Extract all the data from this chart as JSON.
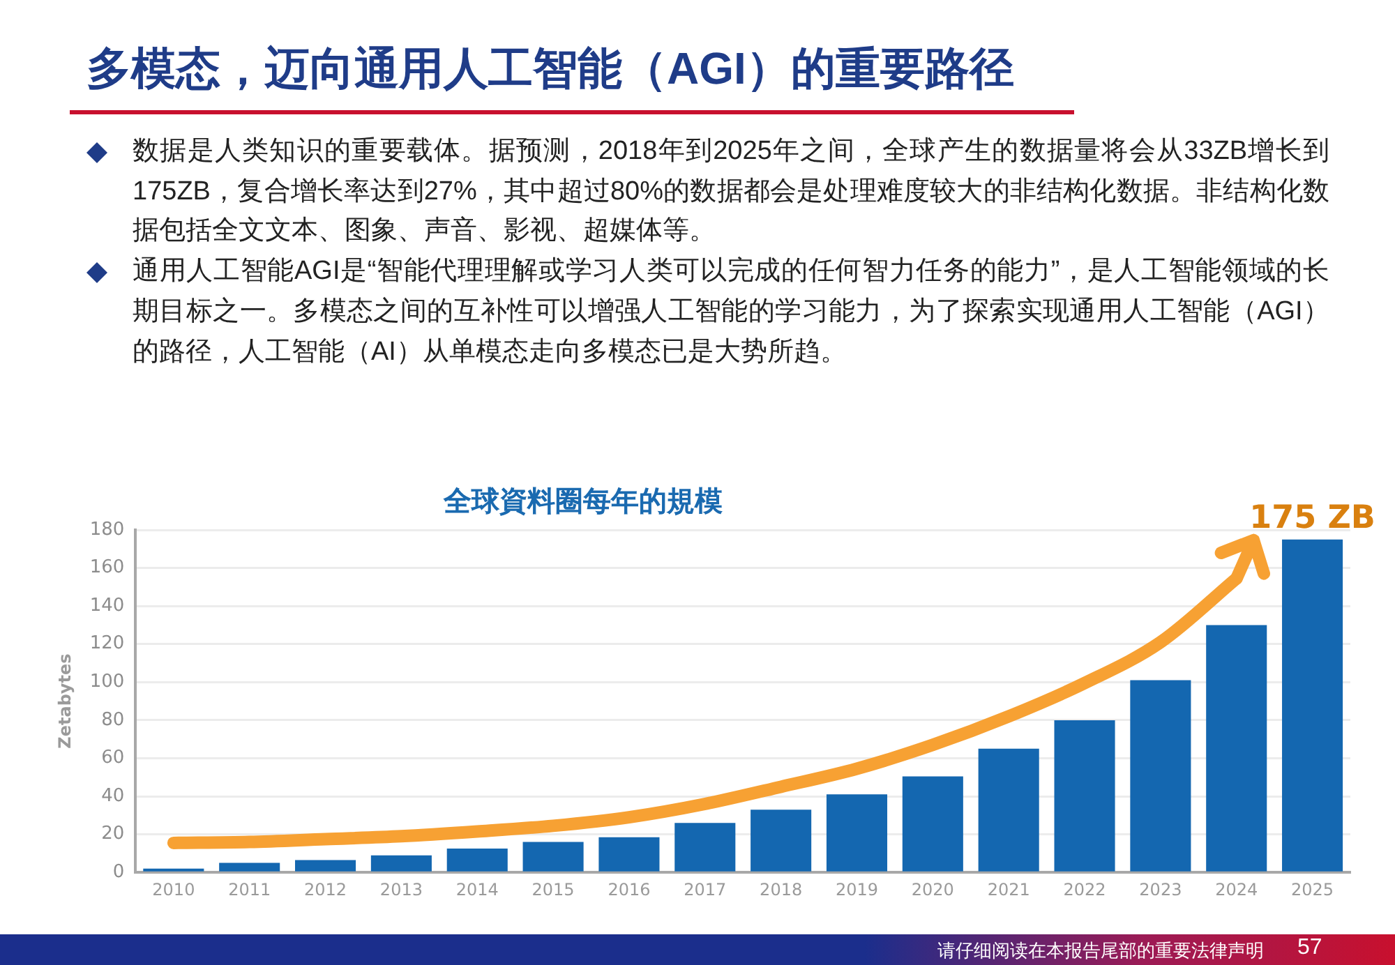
{
  "chart_data": {
    "type": "bar",
    "title": "多模态，迈向通用人工智能（AGI）的重要路径",
    "subtitle": "全球資料圈每年的規模",
    "ylabel": "Zetabytes",
    "categories": [
      "2010",
      "2011",
      "2012",
      "2013",
      "2014",
      "2015",
      "2016",
      "2017",
      "2018",
      "2019",
      "2020",
      "2021",
      "2022",
      "2023",
      "2024",
      "2025"
    ],
    "series": [
      {
        "color": "#1467b0",
        "values": [
          2,
          5,
          6.5,
          9,
          12.5,
          16,
          18.5,
          26,
          33,
          41,
          50.5,
          65,
          80,
          101,
          130,
          175
        ]
      },
      {
        "type": "line",
        "color": "#f7a133",
        "values": [
          15.5,
          16,
          17.5,
          19,
          21.5,
          24.5,
          29,
          36,
          45,
          54.5,
          67,
          82,
          99.5,
          121,
          154.5,
          null
        ]
      }
    ],
    "ylim": [
      0,
      180
    ],
    "yticks": [
      0,
      20,
      40,
      60,
      80,
      100,
      120,
      140,
      160,
      180
    ],
    "grid": "y",
    "annotations": [
      {
        "text": "175 ZB",
        "x": "2025",
        "y": 175
      },
      "数据是人类知识的重要载体。据预测，2018年到2025年之间，全球产生的数据量将会从33ZB增长到175ZB，复合增长率达到27%，其中超过80%的数据都会是处理难度较大的非结构化数据。非结构化数据包括全文文本、图象、声音、影视、超媒体等。",
      "通用人工智能AGI是“智能代理理解或学习人类可以完成的任何智力任务的能力”，是人工智能领域的长期目标之一。多模态之间的互补性可以增强人工智能的学习能力，为了探索实现通用人工智能（AGI）的路径，人工智能（AI）从单模态走向多模态已是大势所趋。",
      "请仔细阅读在本报告尾部的重要法律声明",
      "57"
    ]
  }
}
